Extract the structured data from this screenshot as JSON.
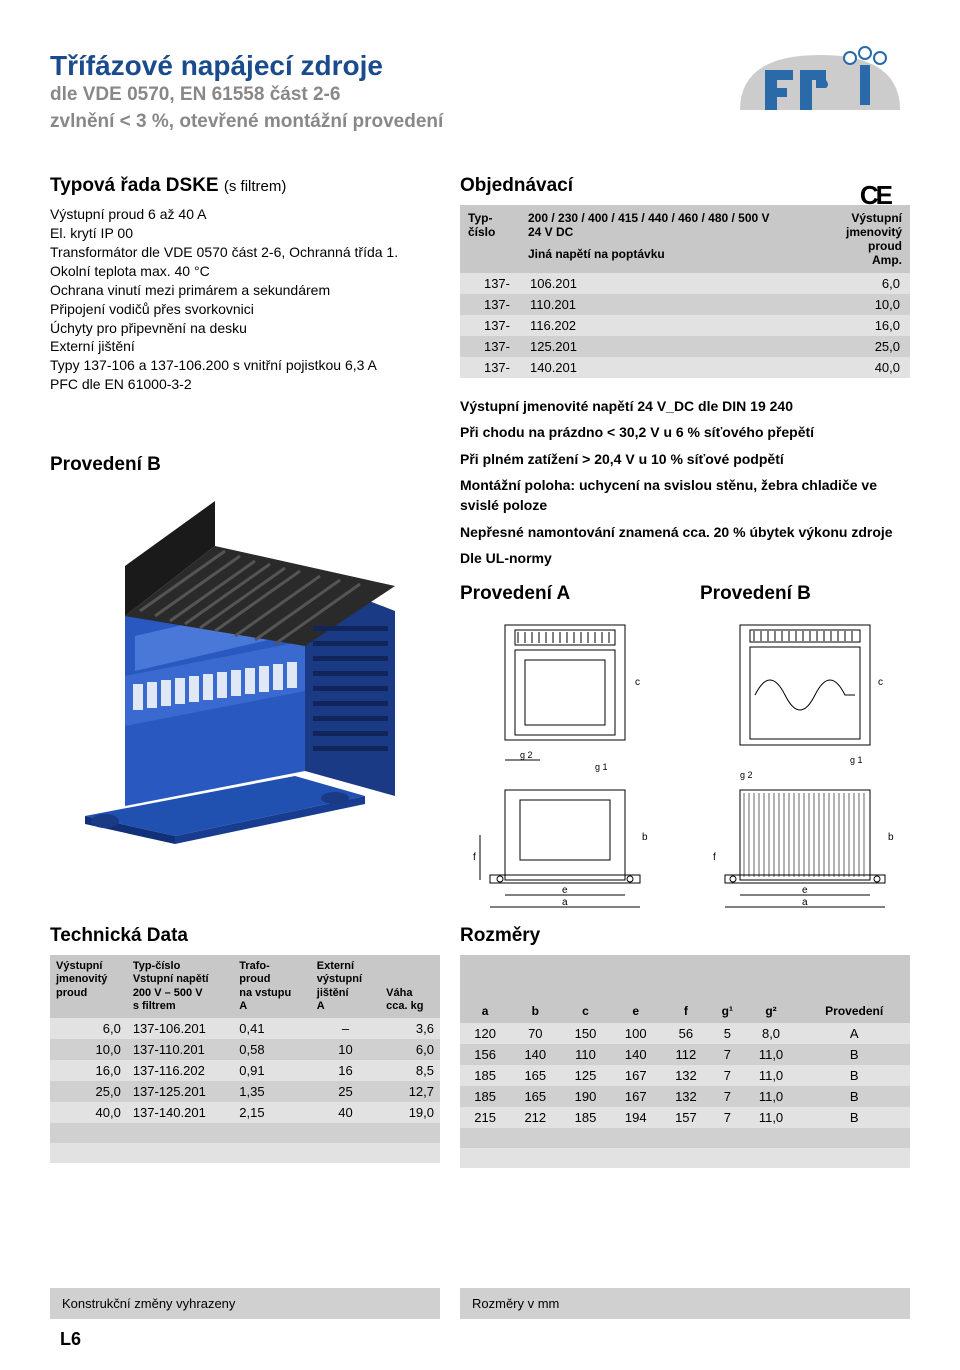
{
  "header": {
    "title_main": "Třífázové napájecí zdroje",
    "title_sub1": "dle VDE 0570, EN 61558 část 2-6",
    "title_sub2": "zvlnění < 3 %, otevřené montážní provedení"
  },
  "logo": {
    "fill": "#2a6aa8",
    "stroke": "#ccc"
  },
  "ce_mark": "CE",
  "left": {
    "section_title": "Typová řada DSKE",
    "section_title_small": "(s filtrem)",
    "specs": [
      "Výstupní proud 6 až 40 A",
      "El. krytí IP 00",
      "Transformátor dle VDE 0570 část 2-6, Ochranná třída 1.",
      "Okolní teplota max. 40 °C",
      "Ochrana vinutí mezi primárem a sekundárem",
      "Připojení vodičů přes svorkovnici",
      "Úchyty pro připevnění na desku",
      "Externí jištění",
      "Typy 137-106 a 137-106.200 s vnitřní pojistkou 6,3 A",
      "PFC dle EN 61000-3-2"
    ],
    "provedeni_b": "Provedení B"
  },
  "order": {
    "title": "Objednávací",
    "head_col1": "Typ-číslo",
    "head_col2a": "200 / 230 / 400 / 415 / 440 / 460 / 480 / 500 V",
    "head_col2b": "24 V DC",
    "head_col2c": "Jiná napětí na poptávku",
    "head_col3a": "Výstupní",
    "head_col3b": "jmenovitý",
    "head_col3c": "proud",
    "head_col3d": "Amp.",
    "rows": [
      {
        "p": "137-",
        "code": "106.201",
        "amp": "6,0"
      },
      {
        "p": "137-",
        "code": "110.201",
        "amp": "10,0"
      },
      {
        "p": "137-",
        "code": "116.202",
        "amp": "16,0"
      },
      {
        "p": "137-",
        "code": "125.201",
        "amp": "25,0"
      },
      {
        "p": "137-",
        "code": "140.201",
        "amp": "40,0"
      }
    ]
  },
  "notes": [
    "Výstupní jmenovité napětí 24 V_DC dle DIN 19 240",
    "Při chodu na prázdno < 30,2 V u 6 % síťového přepětí",
    "Při plném zatížení > 20,4 V u 10 % síťové podpětí",
    "Montážní poloha: uchycení na svislou stěnu, žebra chladiče ve svislé poloze",
    "Nepřesné namontování znamená cca. 20 % úbytek výkonu zdroje",
    "Dle UL-normy"
  ],
  "diagrams": {
    "a_title": "Provedení A",
    "b_title": "Provedení B",
    "dim_labels": {
      "a": "a",
      "b": "b",
      "c": "c",
      "e": "e",
      "f": "f",
      "g1": "g 1",
      "g2": "g 2"
    }
  },
  "tech": {
    "title": "Technická Data",
    "columns": {
      "c1a": "Výstupní",
      "c1b": "jmenovitý",
      "c1c": "proud",
      "c2a": "Typ-číslo",
      "c2b": "Vstupní napětí",
      "c2c": "200 V – 500 V",
      "c2d": "s filtrem",
      "c3a": "Trafo-",
      "c3b": "proud",
      "c3c": "na vstupu",
      "c3d": "A",
      "c4a": "Externí",
      "c4b": "výstupní",
      "c4c": "jištění",
      "c4d": "A",
      "c5a": "Váha",
      "c5b": "cca. kg"
    },
    "rows": [
      {
        "proud": "6,0",
        "typ": "137-106.201",
        "trafo": "0,41",
        "jist": "–",
        "vaha": "3,6"
      },
      {
        "proud": "10,0",
        "typ": "137-110.201",
        "trafo": "0,58",
        "jist": "10",
        "vaha": "6,0"
      },
      {
        "proud": "16,0",
        "typ": "137-116.202",
        "trafo": "0,91",
        "jist": "16",
        "vaha": "8,5"
      },
      {
        "proud": "25,0",
        "typ": "137-125.201",
        "trafo": "1,35",
        "jist": "25",
        "vaha": "12,7"
      },
      {
        "proud": "40,0",
        "typ": "137-140.201",
        "trafo": "2,15",
        "jist": "40",
        "vaha": "19,0"
      }
    ]
  },
  "dims": {
    "title": "Rozměry",
    "columns": [
      "a",
      "b",
      "c",
      "e",
      "f",
      "g¹",
      "g²",
      "Provedení"
    ],
    "rows": [
      {
        "a": "120",
        "b": "70",
        "c": "150",
        "e": "100",
        "f": "56",
        "g1": "5",
        "g2": "8,0",
        "prov": "A"
      },
      {
        "a": "156",
        "b": "140",
        "c": "110",
        "e": "140",
        "f": "112",
        "g1": "7",
        "g2": "11,0",
        "prov": "B"
      },
      {
        "a": "185",
        "b": "165",
        "c": "125",
        "e": "167",
        "f": "132",
        "g1": "7",
        "g2": "11,0",
        "prov": "B"
      },
      {
        "a": "185",
        "b": "165",
        "c": "190",
        "e": "167",
        "f": "132",
        "g1": "7",
        "g2": "11,0",
        "prov": "B"
      },
      {
        "a": "215",
        "b": "212",
        "c": "185",
        "e": "194",
        "f": "157",
        "g1": "7",
        "g2": "11,0",
        "prov": "B"
      }
    ]
  },
  "footer": {
    "left": "Konstrukční změny vyhrazeny",
    "right": "Rozměry v mm",
    "page_num": "L6"
  },
  "colors": {
    "title_blue": "#1a4b8c",
    "subtitle_gray": "#888",
    "th_bg": "#c8c8c8",
    "row_even": "#e2e2e2",
    "row_odd": "#d0d0d0",
    "product_blue": "#2050b0"
  }
}
